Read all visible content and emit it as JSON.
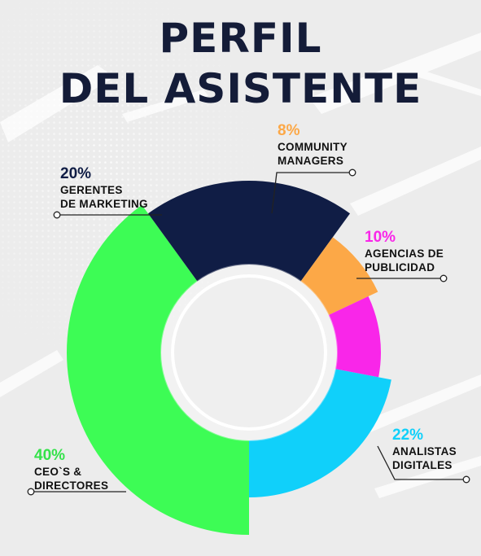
{
  "title": {
    "line1": "PERFIL",
    "line2": "DEL ASISTENTE"
  },
  "chart_data": {
    "type": "pie",
    "title": "PERFIL DEL ASISTENTE",
    "series": [
      {
        "name": "CEO`S & DIRECTORES",
        "lines": [
          "CEO`S &",
          "DIRECTORES"
        ],
        "value": 40,
        "label": "40%",
        "color": "#3dfc55"
      },
      {
        "name": "GERENTES DE MARKETING",
        "lines": [
          "GERENTES",
          "DE MARKETING"
        ],
        "value": 20,
        "label": "20%",
        "color": "#101d45"
      },
      {
        "name": "COMMUNITY MANAGERS",
        "lines": [
          "COMMUNITY",
          "MANAGERS"
        ],
        "value": 8,
        "label": "8%",
        "color": "#fca847"
      },
      {
        "name": "AGENCIAS DE PUBLICIDAD",
        "lines": [
          "AGENCIAS DE",
          "PUBLICIDAD"
        ],
        "value": 10,
        "label": "10%",
        "color": "#f926e9"
      },
      {
        "name": "ANALISTAS DIGITALES",
        "lines": [
          "ANALISTAS",
          "DIGITALES"
        ],
        "value": 22,
        "label": "22%",
        "color": "#10d0fa"
      }
    ]
  }
}
